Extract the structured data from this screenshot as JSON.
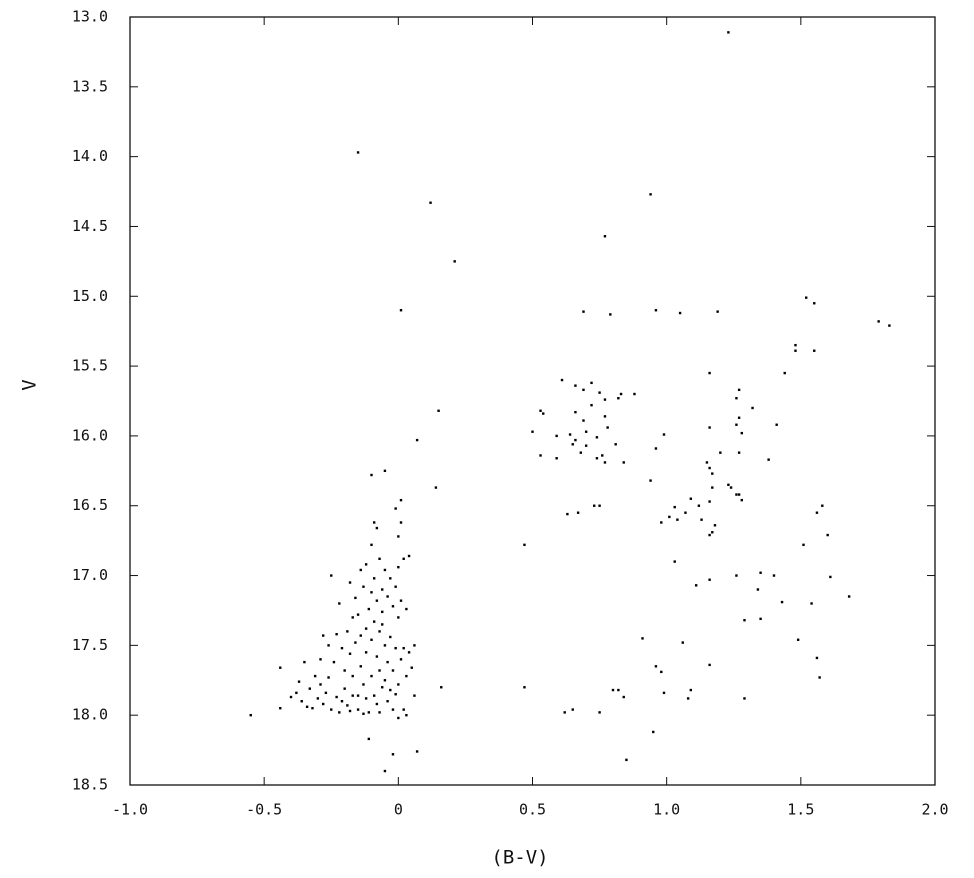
{
  "chart_data": {
    "type": "scatter",
    "x_label": "(B-V)",
    "y_label": "V",
    "color": "#000000",
    "xlim": [
      -1.0,
      2.0
    ],
    "ylim": [
      18.5,
      13.0
    ],
    "xticks": [
      {
        "value": -1.0,
        "label": "-1.0"
      },
      -0.5,
      0,
      0.5,
      {
        "value": 1.0,
        "label": "1.0"
      },
      1.5,
      {
        "value": 2.0,
        "label": "2.0"
      }
    ],
    "yticks": [
      {
        "value": 13.0,
        "label": "13.0"
      },
      13.5,
      {
        "value": 14.0,
        "label": "14.0"
      },
      14.5,
      {
        "value": 15.0,
        "label": "15.0"
      },
      15.5,
      {
        "value": 16.0,
        "label": "16.0"
      },
      16.5,
      {
        "value": 17.0,
        "label": "17.0"
      },
      17.5,
      {
        "value": 18.0,
        "label": "18.0"
      },
      18.5
    ],
    "x": [
      1.23,
      -0.15,
      0.12,
      0.21,
      0.01,
      0.94,
      0.77,
      0.15,
      0.07,
      0.14,
      -0.05,
      -0.1,
      0.47,
      0.47,
      0.69,
      0.79,
      0.96,
      1.05,
      1.19,
      1.52,
      1.55,
      1.79,
      1.83,
      1.48,
      1.48,
      1.55,
      1.44,
      0.61,
      0.66,
      0.72,
      0.69,
      0.75,
      0.77,
      0.83,
      0.82,
      0.88,
      0.53,
      0.54,
      0.66,
      0.69,
      0.72,
      0.77,
      0.78,
      0.7,
      0.64,
      0.5,
      0.59,
      0.65,
      0.66,
      0.7,
      0.74,
      0.81,
      0.53,
      0.59,
      0.68,
      0.74,
      0.76,
      0.77,
      0.84,
      0.63,
      0.67,
      0.73,
      0.75,
      1.27,
      1.26,
      1.32,
      1.27,
      1.26,
      1.41,
      1.28,
      1.16,
      0.99,
      0.96,
      1.16,
      1.2,
      1.27,
      1.38,
      1.15,
      1.16,
      1.17,
      0.94,
      1.17,
      1.23,
      1.24,
      1.26,
      1.27,
      1.28,
      1.09,
      1.16,
      1.12,
      1.03,
      1.07,
      1.01,
      1.04,
      0.98,
      1.13,
      1.18,
      1.17,
      1.16,
      1.03,
      1.11,
      1.16,
      1.26,
      1.34,
      1.35,
      1.4,
      1.29,
      1.35,
      1.43,
      1.51,
      1.58,
      1.56,
      1.6,
      1.61,
      1.54,
      1.68,
      1.49,
      1.56,
      1.57,
      0.91,
      0.96,
      0.98,
      1.06,
      1.16,
      0.99,
      1.09,
      1.08,
      1.29,
      0.8,
      0.82,
      0.84,
      0.62,
      0.65,
      0.75,
      0.95,
      0.85,
      -0.55,
      -0.44,
      -0.44,
      -0.4,
      -0.38,
      -0.36,
      -0.35,
      -0.34,
      -0.33,
      -0.32,
      -0.31,
      -0.3,
      -0.29,
      -0.28,
      -0.28,
      -0.27,
      -0.26,
      -0.25,
      -0.24,
      -0.23,
      -0.23,
      -0.22,
      -0.21,
      -0.2,
      -0.2,
      -0.19,
      -0.19,
      -0.18,
      -0.18,
      -0.17,
      -0.17,
      -0.16,
      -0.16,
      -0.15,
      -0.15,
      -0.14,
      -0.14,
      -0.14,
      -0.13,
      -0.13,
      -0.13,
      -0.12,
      -0.12,
      -0.12,
      -0.11,
      -0.11,
      -0.11,
      -0.1,
      -0.1,
      -0.1,
      -0.1,
      -0.09,
      -0.09,
      -0.09,
      -0.09,
      -0.08,
      -0.08,
      -0.08,
      -0.08,
      -0.07,
      -0.07,
      -0.07,
      -0.07,
      -0.06,
      -0.06,
      -0.06,
      -0.05,
      -0.05,
      -0.05,
      -0.05,
      -0.04,
      -0.04,
      -0.04,
      -0.03,
      -0.03,
      -0.03,
      -0.02,
      -0.02,
      -0.02,
      -0.02,
      -0.01,
      -0.01,
      -0.01,
      -0.01,
      0.0,
      0.0,
      0.0,
      0.0,
      0.0,
      0.01,
      0.01,
      0.01,
      0.01,
      0.02,
      0.02,
      0.02,
      0.03,
      0.03,
      0.03,
      0.04,
      0.04,
      0.05,
      0.06,
      0.06,
      0.07,
      -0.25,
      -0.22,
      -0.18,
      -0.15,
      -0.29,
      -0.37,
      -0.26,
      -0.21,
      -0.17,
      -0.06,
      -0.12,
      0.16
    ],
    "values": [
      13.11,
      13.97,
      14.33,
      14.75,
      15.1,
      14.27,
      14.57,
      15.82,
      16.03,
      16.37,
      16.25,
      16.28,
      16.78,
      17.8,
      15.11,
      15.13,
      15.1,
      15.12,
      15.11,
      15.01,
      15.05,
      15.18,
      15.21,
      15.39,
      15.35,
      15.39,
      15.55,
      15.6,
      15.64,
      15.62,
      15.67,
      15.69,
      15.74,
      15.7,
      15.73,
      15.7,
      15.82,
      15.84,
      15.83,
      15.89,
      15.78,
      15.86,
      15.94,
      15.97,
      15.99,
      15.97,
      16.0,
      16.06,
      16.03,
      16.07,
      16.01,
      16.06,
      16.14,
      16.16,
      16.12,
      16.16,
      16.14,
      16.19,
      16.19,
      16.56,
      16.55,
      16.5,
      16.5,
      15.67,
      15.73,
      15.8,
      15.87,
      15.92,
      15.92,
      15.98,
      15.94,
      15.99,
      16.09,
      15.55,
      16.12,
      16.12,
      16.17,
      16.19,
      16.23,
      16.27,
      16.32,
      16.37,
      16.35,
      16.37,
      16.42,
      16.42,
      16.46,
      16.45,
      16.47,
      16.5,
      16.51,
      16.55,
      16.58,
      16.6,
      16.62,
      16.6,
      16.64,
      16.69,
      16.71,
      16.9,
      17.07,
      17.03,
      17.0,
      17.1,
      16.98,
      17.0,
      17.32,
      17.31,
      17.19,
      16.78,
      16.5,
      16.55,
      16.71,
      17.01,
      17.2,
      17.15,
      17.46,
      17.59,
      17.73,
      17.45,
      17.65,
      17.69,
      17.48,
      17.64,
      17.84,
      17.82,
      17.88,
      17.88,
      17.82,
      17.82,
      17.87,
      17.98,
      17.96,
      17.98,
      18.12,
      18.32,
      18.0,
      17.66,
      17.95,
      17.87,
      17.84,
      17.9,
      17.62,
      17.94,
      17.81,
      17.95,
      17.72,
      17.88,
      17.78,
      17.43,
      17.92,
      17.84,
      17.73,
      17.96,
      17.62,
      17.42,
      17.87,
      17.98,
      17.52,
      17.68,
      17.81,
      17.4,
      17.93,
      17.56,
      17.97,
      17.3,
      17.72,
      17.16,
      17.48,
      17.86,
      17.96,
      16.96,
      17.43,
      17.65,
      17.08,
      17.78,
      17.99,
      16.92,
      17.55,
      17.88,
      17.24,
      17.98,
      18.17,
      16.78,
      17.12,
      17.46,
      17.72,
      16.62,
      17.02,
      17.33,
      17.86,
      16.66,
      17.18,
      17.58,
      17.92,
      16.88,
      17.4,
      17.68,
      17.98,
      17.1,
      17.26,
      17.8,
      16.96,
      17.5,
      17.75,
      18.4,
      17.15,
      17.62,
      17.9,
      17.02,
      17.44,
      17.82,
      17.22,
      17.68,
      17.96,
      18.28,
      16.52,
      17.08,
      17.52,
      17.85,
      16.72,
      16.94,
      17.3,
      17.78,
      18.02,
      16.46,
      16.62,
      17.18,
      17.6,
      16.88,
      17.52,
      17.96,
      17.24,
      17.72,
      18.0,
      16.86,
      17.55,
      17.66,
      17.5,
      17.86,
      18.26,
      17.0,
      17.2,
      17.05,
      17.28,
      17.6,
      17.76,
      17.5,
      17.9,
      17.86,
      17.35,
      17.38,
      17.8
    ]
  }
}
